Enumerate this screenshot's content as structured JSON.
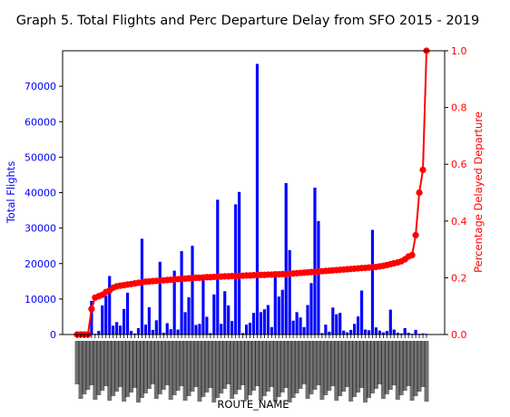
{
  "chart_data": {
    "type": "bar",
    "title": "Graph 5. Total Flights and Perc Departure Delay from SFO 2015 - 2019",
    "xlabel": "ROUTE_NAME",
    "grid": false,
    "left_axis": {
      "label": "Total Flights",
      "color": "#0000ff",
      "ylim": [
        0,
        80000
      ],
      "ticks": [
        0,
        10000,
        20000,
        30000,
        40000,
        50000,
        60000,
        70000
      ]
    },
    "right_axis": {
      "label": "Percentage Delayed Departure",
      "color": "#ff0000",
      "ylim": [
        0,
        1.0
      ],
      "ticks": [
        "0.0",
        "0.2",
        "0.4",
        "0.6",
        "0.8",
        "1.0"
      ]
    },
    "bars": {
      "color": "#0000ff",
      "values": [
        200,
        200,
        300,
        600,
        9500,
        200,
        1000,
        8200,
        11000,
        16500,
        2500,
        3500,
        2500,
        7200,
        11800,
        1000,
        300,
        1800,
        27000,
        2800,
        7700,
        1300,
        4000,
        20500,
        500,
        3200,
        1500,
        18000,
        1400,
        23500,
        6300,
        10500,
        25000,
        2700,
        3000,
        16500,
        5000,
        400,
        11300,
        38000,
        3000,
        12200,
        8200,
        3800,
        36700,
        40200,
        400,
        2800,
        3300,
        6100,
        76300,
        6300,
        7100,
        8300,
        2100,
        17800,
        10700,
        12600,
        42700,
        23800,
        3900,
        6300,
        4800,
        2100,
        8300,
        14500,
        41400,
        32000,
        400,
        2800,
        800,
        7600,
        5700,
        6100,
        1100,
        600,
        1300,
        3000,
        5100,
        12400,
        1400,
        1200,
        29500,
        2000,
        1100,
        600,
        1000,
        7000,
        1400,
        500,
        300,
        1800,
        500,
        200,
        1300,
        200,
        300,
        200
      ]
    },
    "line": {
      "color": "#ff0000",
      "values": [
        0.0,
        0.0,
        0.0,
        0.0,
        0.09,
        0.13,
        0.135,
        0.14,
        0.15,
        0.155,
        0.165,
        0.17,
        0.172,
        0.174,
        0.176,
        0.178,
        0.18,
        0.182,
        0.184,
        0.186,
        0.187,
        0.188,
        0.189,
        0.19,
        0.191,
        0.192,
        0.193,
        0.194,
        0.195,
        0.196,
        0.197,
        0.198,
        0.199,
        0.2,
        0.2,
        0.201,
        0.202,
        0.202,
        0.203,
        0.204,
        0.204,
        0.205,
        0.205,
        0.206,
        0.206,
        0.207,
        0.207,
        0.208,
        0.208,
        0.209,
        0.209,
        0.21,
        0.21,
        0.211,
        0.211,
        0.212,
        0.212,
        0.213,
        0.213,
        0.214,
        0.215,
        0.216,
        0.217,
        0.218,
        0.219,
        0.22,
        0.221,
        0.222,
        0.223,
        0.224,
        0.225,
        0.226,
        0.227,
        0.228,
        0.229,
        0.23,
        0.231,
        0.232,
        0.233,
        0.234,
        0.235,
        0.236,
        0.237,
        0.238,
        0.24,
        0.242,
        0.245,
        0.248,
        0.251,
        0.254,
        0.258,
        0.265,
        0.275,
        0.28,
        0.35,
        0.5,
        0.58,
        1.0
      ]
    }
  }
}
